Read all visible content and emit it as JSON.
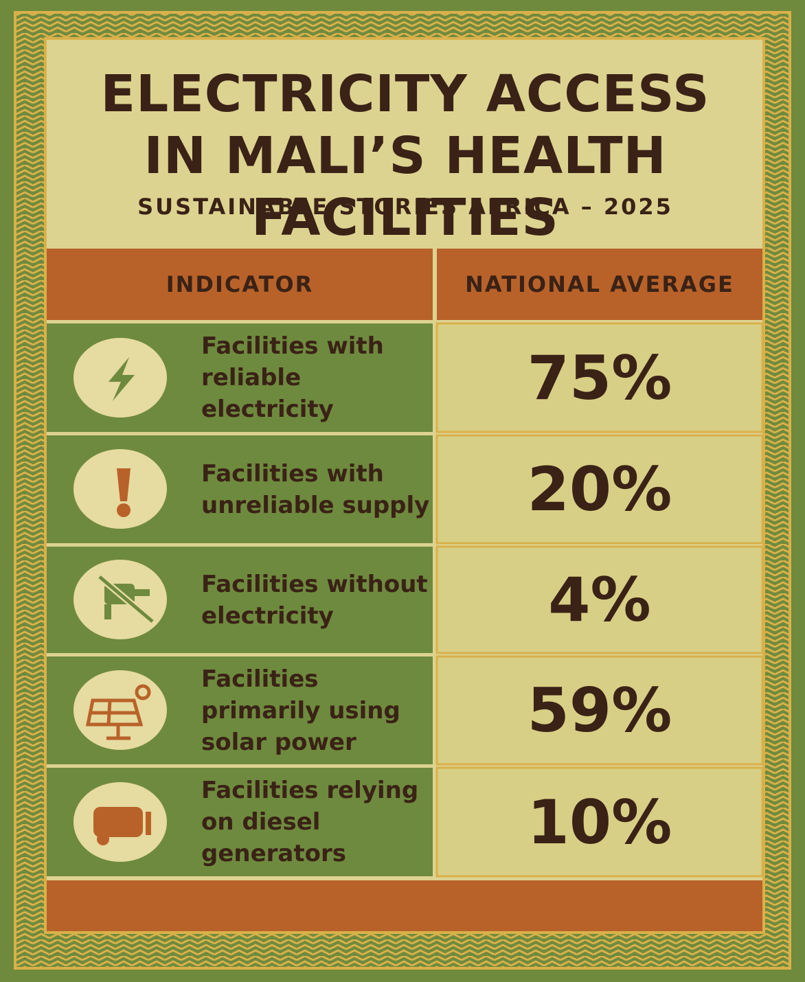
{
  "header": {
    "title": "ELECTRICITY ACCESS IN MALI’S HEALTH FACILITIES",
    "subtitle": "SUSTAINABLE STORIES AFRICA – 2025"
  },
  "table": {
    "columns": [
      "INDICATOR",
      "NATIONAL AVERAGE"
    ],
    "rows": [
      [
        "Facilities with reliable electricity",
        "75%"
      ],
      [
        "Facilities with unreliable supply",
        "20%"
      ],
      [
        "Facilities without electricity",
        "4%"
      ],
      [
        "Facilities primarily using solar power",
        "59%"
      ],
      [
        "Facilities relying on diesel generators",
        "10%"
      ]
    ]
  }
}
